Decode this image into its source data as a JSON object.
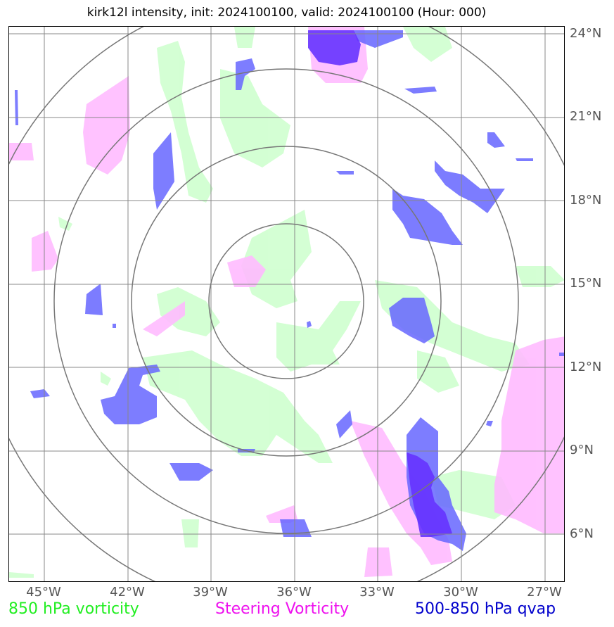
{
  "title": "kirk12l intensity, init: 2024100100, valid: 2024100100 (Hour: 000)",
  "lat_labels": [
    "24°N",
    "21°N",
    "18°N",
    "15°N",
    "12°N",
    "9°N",
    "6°N"
  ],
  "lon_labels": [
    "45°W",
    "42°W",
    "39°W",
    "36°W",
    "33°W",
    "30°W",
    "27°W"
  ],
  "legend": {
    "green": "850 hPa vorticity",
    "magenta": "Steering Vorticity",
    "blue": "500-850 hPa qvap"
  },
  "colors": {
    "green": "#ccffcc",
    "magenta": "#ffbbff",
    "blue": "#6666ff",
    "purple": "#6633ff",
    "grid": "#888888",
    "rings": "#777777"
  }
}
